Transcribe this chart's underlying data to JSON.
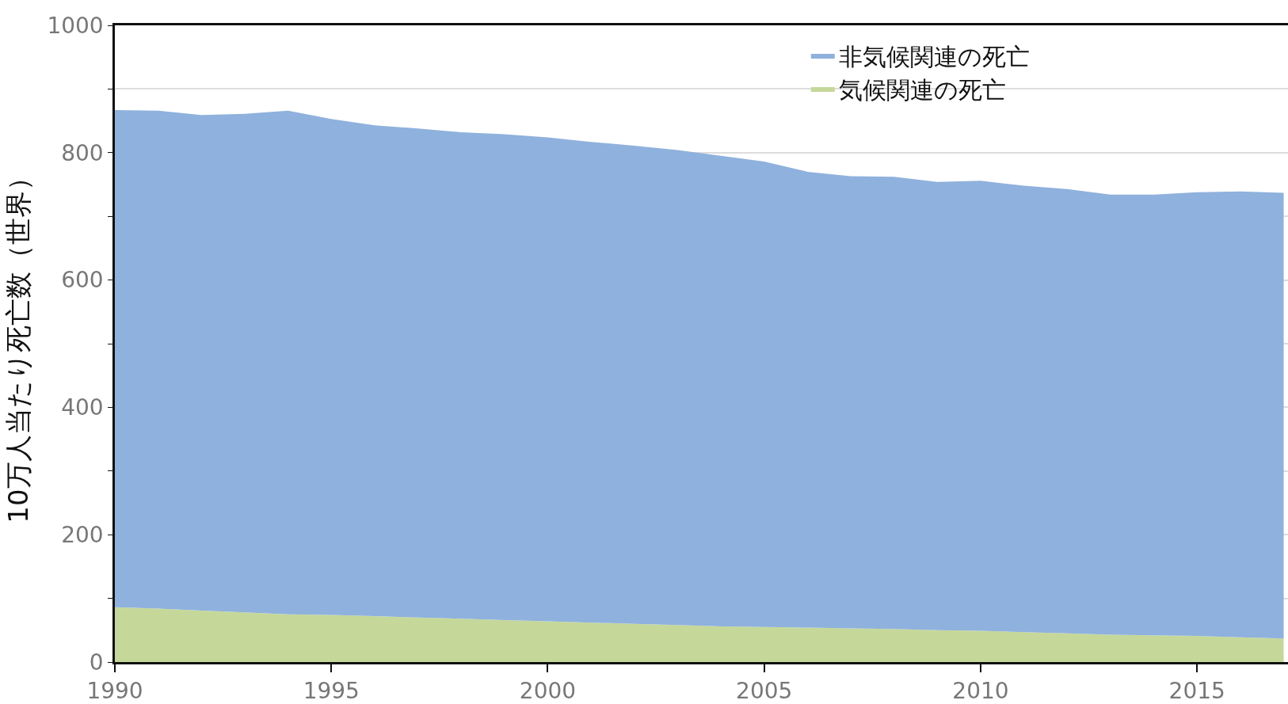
{
  "chart_data": {
    "type": "area",
    "stacked": true,
    "ylabel": "10万人当たり死亡数（世界）",
    "x": [
      1990,
      1991,
      1992,
      1993,
      1994,
      1995,
      1996,
      1997,
      1998,
      1999,
      2000,
      2001,
      2002,
      2003,
      2004,
      2005,
      2006,
      2007,
      2008,
      2009,
      2010,
      2011,
      2012,
      2013,
      2014,
      2015,
      2016,
      2017
    ],
    "series": [
      {
        "name": "気候関連の死亡",
        "color": "#c5d89a",
        "values": [
          86,
          84,
          81,
          78,
          75,
          74,
          72,
          70,
          68,
          66,
          64,
          62,
          60,
          58,
          56,
          55,
          54,
          53,
          52,
          50,
          49,
          47,
          45,
          43,
          42,
          41,
          39,
          37
        ]
      },
      {
        "name": "非気候関連の死亡",
        "color": "#8fb1dd",
        "values": [
          781,
          782,
          778,
          783,
          791,
          779,
          771,
          768,
          764,
          763,
          760,
          755,
          751,
          746,
          739,
          731,
          716,
          710,
          710,
          704,
          707,
          701,
          698,
          691,
          692,
          697,
          700,
          700
        ]
      }
    ],
    "xlim": [
      1990,
      2017.1
    ],
    "ylim": [
      0,
      1000
    ],
    "xticks": [
      1990,
      1995,
      2000,
      2005,
      2010,
      2015
    ],
    "yticks": [
      0,
      {
        "value": 100,
        "label": null
      },
      200,
      {
        "value": 300,
        "label": null
      },
      400,
      {
        "value": 500,
        "label": null
      },
      600,
      {
        "value": 700,
        "label": null
      },
      800,
      {
        "value": 900,
        "label": null
      },
      1000
    ],
    "grid": "y",
    "legend": "top right"
  }
}
